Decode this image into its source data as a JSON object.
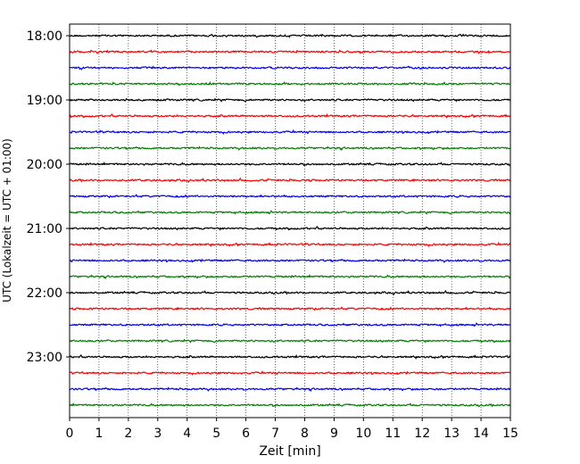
{
  "chart_data": {
    "type": "line",
    "title": "",
    "xlabel": "Zeit  [min]",
    "ylabel": "UTC (Lokalzeit = UTC + 01:00)",
    "xlim": [
      0,
      15
    ],
    "x_ticks": [
      0,
      1,
      2,
      3,
      4,
      5,
      6,
      7,
      8,
      9,
      10,
      11,
      12,
      13,
      14,
      15
    ],
    "y_tick_labels": [
      "18:00",
      "19:00",
      "20:00",
      "21:00",
      "22:00",
      "23:00"
    ],
    "grid": "vertical dotted",
    "row_interval_minutes": 15,
    "colors": [
      "#000000",
      "#ff0000",
      "#0000ff",
      "#008000"
    ],
    "traces": [
      {
        "start": "18:00",
        "color": "#000000"
      },
      {
        "start": "18:15",
        "color": "#ff0000"
      },
      {
        "start": "18:30",
        "color": "#0000ff"
      },
      {
        "start": "18:45",
        "color": "#008000"
      },
      {
        "start": "19:00",
        "color": "#000000"
      },
      {
        "start": "19:15",
        "color": "#ff0000"
      },
      {
        "start": "19:30",
        "color": "#0000ff"
      },
      {
        "start": "19:45",
        "color": "#008000"
      },
      {
        "start": "20:00",
        "color": "#000000"
      },
      {
        "start": "20:15",
        "color": "#ff0000"
      },
      {
        "start": "20:30",
        "color": "#0000ff"
      },
      {
        "start": "20:45",
        "color": "#008000"
      },
      {
        "start": "21:00",
        "color": "#000000"
      },
      {
        "start": "21:15",
        "color": "#ff0000"
      },
      {
        "start": "21:30",
        "color": "#0000ff"
      },
      {
        "start": "21:45",
        "color": "#008000"
      },
      {
        "start": "22:00",
        "color": "#000000"
      },
      {
        "start": "22:15",
        "color": "#ff0000"
      },
      {
        "start": "22:30",
        "color": "#0000ff"
      },
      {
        "start": "22:45",
        "color": "#008000"
      },
      {
        "start": "23:00",
        "color": "#000000"
      },
      {
        "start": "23:15",
        "color": "#ff0000"
      },
      {
        "start": "23:30",
        "color": "#0000ff"
      },
      {
        "start": "23:45",
        "color": "#008000"
      }
    ]
  }
}
